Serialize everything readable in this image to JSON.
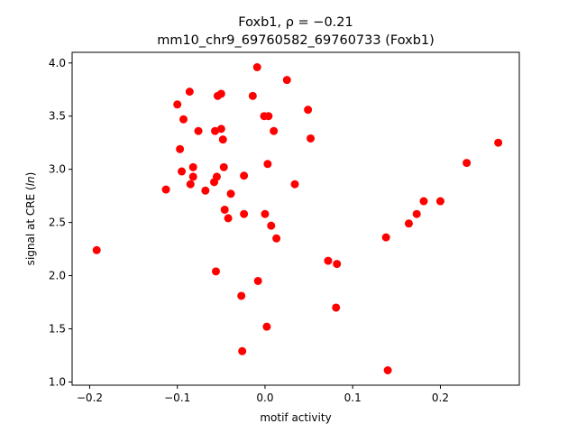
{
  "chart_data": {
    "type": "scatter",
    "title_line1": "Foxb1, ρ = −0.21",
    "title_line2": "mm10_chr9_69760582_69760733 (Foxb1)",
    "xlabel": "motif activity",
    "ylabel": "signal at CRE (ln)",
    "xlim": [
      -0.22,
      0.29
    ],
    "ylim": [
      0.97,
      4.1
    ],
    "x_ticks": [
      -0.2,
      -0.1,
      0.0,
      0.1,
      0.2
    ],
    "x_tick_labels": [
      "−0.2",
      "−0.1",
      "0.0",
      "0.1",
      "0.2"
    ],
    "y_ticks": [
      1.0,
      1.5,
      2.0,
      2.5,
      3.0,
      3.5,
      4.0
    ],
    "y_tick_labels": [
      "1.0",
      "1.5",
      "2.0",
      "2.5",
      "3.0",
      "3.5",
      "4.0"
    ],
    "marker_color": "#ff0000",
    "grid": false,
    "points": [
      {
        "x": -0.192,
        "y": 2.24
      },
      {
        "x": -0.113,
        "y": 2.81
      },
      {
        "x": -0.1,
        "y": 3.61
      },
      {
        "x": -0.097,
        "y": 3.19
      },
      {
        "x": -0.095,
        "y": 2.98
      },
      {
        "x": -0.093,
        "y": 3.47
      },
      {
        "x": -0.086,
        "y": 3.73
      },
      {
        "x": -0.085,
        "y": 2.86
      },
      {
        "x": -0.082,
        "y": 3.02
      },
      {
        "x": -0.082,
        "y": 2.93
      },
      {
        "x": -0.076,
        "y": 3.36
      },
      {
        "x": -0.068,
        "y": 2.8
      },
      {
        "x": -0.058,
        "y": 2.88
      },
      {
        "x": -0.057,
        "y": 3.36
      },
      {
        "x": -0.056,
        "y": 2.04
      },
      {
        "x": -0.055,
        "y": 2.93
      },
      {
        "x": -0.054,
        "y": 3.69
      },
      {
        "x": -0.05,
        "y": 3.71
      },
      {
        "x": -0.05,
        "y": 3.38
      },
      {
        "x": -0.048,
        "y": 3.28
      },
      {
        "x": -0.047,
        "y": 3.02
      },
      {
        "x": -0.046,
        "y": 2.62
      },
      {
        "x": -0.042,
        "y": 2.54
      },
      {
        "x": -0.039,
        "y": 2.77
      },
      {
        "x": -0.027,
        "y": 1.81
      },
      {
        "x": -0.026,
        "y": 1.29
      },
      {
        "x": -0.024,
        "y": 2.58
      },
      {
        "x": -0.024,
        "y": 2.94
      },
      {
        "x": -0.014,
        "y": 3.69
      },
      {
        "x": -0.009,
        "y": 3.96
      },
      {
        "x": -0.008,
        "y": 1.95
      },
      {
        "x": -0.001,
        "y": 3.5
      },
      {
        "x": 0.0,
        "y": 2.58
      },
      {
        "x": 0.002,
        "y": 1.52
      },
      {
        "x": 0.003,
        "y": 3.05
      },
      {
        "x": 0.004,
        "y": 3.5
      },
      {
        "x": 0.007,
        "y": 2.47
      },
      {
        "x": 0.01,
        "y": 3.36
      },
      {
        "x": 0.013,
        "y": 2.35
      },
      {
        "x": 0.025,
        "y": 3.84
      },
      {
        "x": 0.034,
        "y": 2.86
      },
      {
        "x": 0.049,
        "y": 3.56
      },
      {
        "x": 0.052,
        "y": 3.29
      },
      {
        "x": 0.072,
        "y": 2.14
      },
      {
        "x": 0.081,
        "y": 1.7
      },
      {
        "x": 0.082,
        "y": 2.11
      },
      {
        "x": 0.138,
        "y": 2.36
      },
      {
        "x": 0.14,
        "y": 1.11
      },
      {
        "x": 0.164,
        "y": 2.49
      },
      {
        "x": 0.173,
        "y": 2.58
      },
      {
        "x": 0.181,
        "y": 2.7
      },
      {
        "x": 0.2,
        "y": 2.7
      },
      {
        "x": 0.23,
        "y": 3.06
      },
      {
        "x": 0.266,
        "y": 3.25
      }
    ]
  }
}
